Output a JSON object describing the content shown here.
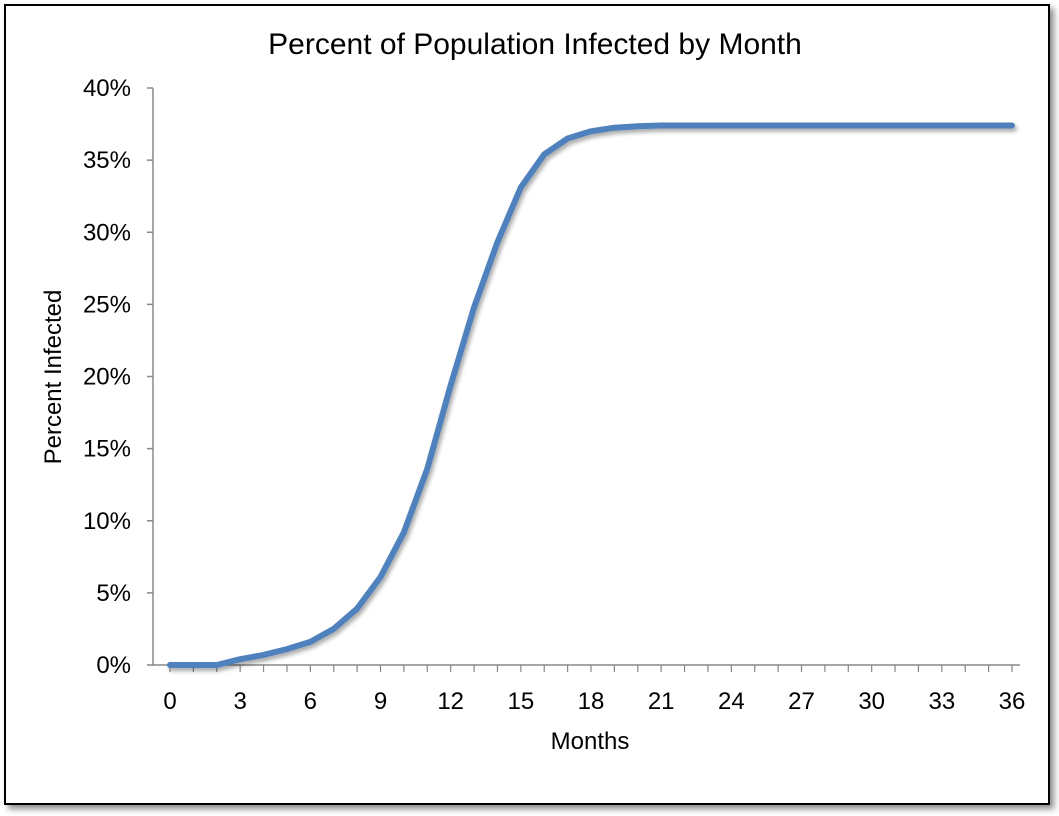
{
  "chart_data": {
    "type": "line",
    "title": "Percent of Population Infected by Month",
    "xlabel": "Months",
    "ylabel": "Percent Infected",
    "xlim": [
      0,
      36
    ],
    "ylim": [
      0,
      40
    ],
    "x_ticks": [
      0,
      3,
      6,
      9,
      12,
      15,
      18,
      21,
      24,
      27,
      30,
      33,
      36
    ],
    "x_tick_labels": [
      "0",
      "3",
      "6",
      "9",
      "12",
      "15",
      "18",
      "21",
      "24",
      "27",
      "30",
      "33",
      "36"
    ],
    "y_ticks": [
      0,
      5,
      10,
      15,
      20,
      25,
      30,
      35,
      40
    ],
    "y_tick_labels": [
      "0%",
      "5%",
      "10%",
      "15%",
      "20%",
      "25%",
      "30%",
      "35%",
      "40%"
    ],
    "grid": false,
    "legend": "none",
    "series": [
      {
        "name": "Percent Infected",
        "color": "#4f81bd",
        "x": [
          0,
          1,
          2,
          3,
          4,
          5,
          6,
          7,
          8,
          9,
          10,
          11,
          12,
          13,
          14,
          15,
          16,
          17,
          18,
          19,
          20,
          21,
          22,
          23,
          24,
          25,
          26,
          27,
          28,
          29,
          30,
          31,
          32,
          33,
          34,
          35,
          36
        ],
        "values": [
          0,
          0,
          0,
          0.4,
          0.7,
          1.1,
          1.6,
          2.5,
          3.9,
          6.1,
          9.2,
          13.6,
          19.4,
          24.8,
          29.3,
          33.1,
          35.4,
          36.5,
          37.0,
          37.25,
          37.35,
          37.4,
          37.4,
          37.4,
          37.4,
          37.4,
          37.4,
          37.4,
          37.4,
          37.4,
          37.4,
          37.4,
          37.4,
          37.4,
          37.4,
          37.4,
          37.4
        ]
      }
    ]
  }
}
